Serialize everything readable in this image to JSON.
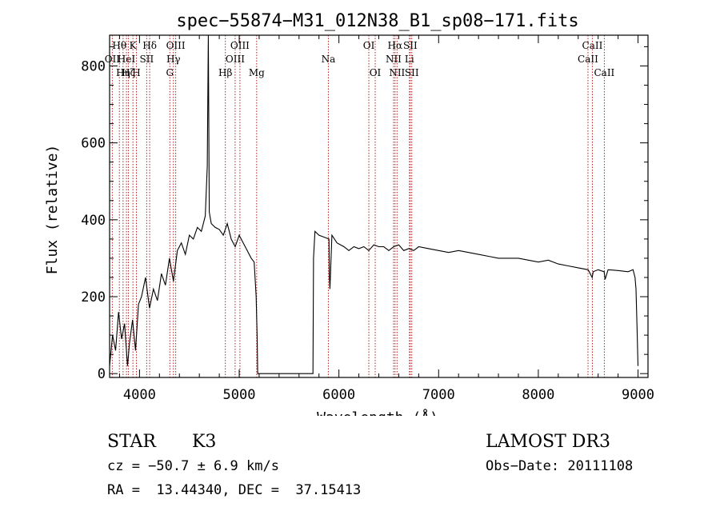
{
  "chart_data": {
    "type": "line",
    "title": "spec−55874−M31_012N38_B1_sp08−171.fits",
    "xlabel": "Wavelength (Å)",
    "ylabel": "Flux (relative)",
    "xlim": [
      3700,
      9100
    ],
    "ylim": [
      -10,
      880
    ],
    "x_ticks": [
      {
        "value": 4000,
        "label": "4000"
      },
      {
        "value": 5000,
        "label": "5000"
      },
      {
        "value": 6000,
        "label": "6000"
      },
      {
        "value": 7000,
        "label": "7000"
      },
      {
        "value": 8000,
        "label": "8000"
      },
      {
        "value": 9000,
        "label": "9000"
      }
    ],
    "y_ticks": [
      {
        "value": 0,
        "label": "0"
      },
      {
        "value": 200,
        "label": "200"
      },
      {
        "value": 400,
        "label": "400"
      },
      {
        "value": 600,
        "label": "600"
      },
      {
        "value": 800,
        "label": "800"
      }
    ],
    "series": [
      {
        "name": "flux",
        "x": [
          3700,
          3730,
          3760,
          3790,
          3820,
          3850,
          3880,
          3900,
          3930,
          3960,
          3990,
          4020,
          4060,
          4100,
          4140,
          4180,
          4220,
          4260,
          4300,
          4340,
          4380,
          4420,
          4460,
          4500,
          4540,
          4580,
          4620,
          4660,
          4680,
          4690,
          4700,
          4720,
          4760,
          4800,
          4840,
          4880,
          4920,
          4960,
          5000,
          5040,
          5080,
          5120,
          5150,
          5170,
          5180,
          5185,
          5300,
          5500,
          5740,
          5745,
          5760,
          5800,
          5850,
          5900,
          5905,
          5910,
          5930,
          5980,
          6050,
          6100,
          6150,
          6200,
          6250,
          6300,
          6350,
          6400,
          6450,
          6500,
          6550,
          6600,
          6650,
          6700,
          6750,
          6800,
          6900,
          7000,
          7100,
          7200,
          7300,
          7400,
          7500,
          7600,
          7700,
          7800,
          7900,
          8000,
          8100,
          8200,
          8300,
          8400,
          8500,
          8540,
          8550,
          8600,
          8660,
          8670,
          8700,
          8800,
          8900,
          8950,
          8970,
          8980,
          8990,
          9000
        ],
        "values": [
          20,
          100,
          60,
          160,
          90,
          130,
          20,
          80,
          140,
          60,
          180,
          200,
          250,
          170,
          220,
          190,
          260,
          230,
          300,
          240,
          320,
          340,
          310,
          360,
          350,
          380,
          370,
          410,
          540,
          880,
          420,
          390,
          380,
          375,
          360,
          390,
          350,
          330,
          360,
          340,
          320,
          300,
          290,
          200,
          90,
          0,
          0,
          0,
          0,
          300,
          370,
          360,
          355,
          350,
          250,
          220,
          360,
          340,
          330,
          320,
          330,
          325,
          330,
          320,
          335,
          330,
          330,
          320,
          330,
          335,
          320,
          325,
          320,
          330,
          325,
          320,
          315,
          320,
          315,
          310,
          305,
          300,
          300,
          300,
          295,
          290,
          295,
          285,
          280,
          275,
          270,
          250,
          265,
          270,
          265,
          245,
          270,
          268,
          265,
          270,
          250,
          220,
          120,
          20
        ]
      }
    ],
    "line_markers": [
      {
        "wavelength": 3727,
        "label": "OII",
        "row": 2
      },
      {
        "wavelength": 3798,
        "label": "Hθ",
        "row": 1
      },
      {
        "wavelength": 3835,
        "label": "Hη",
        "row": 3
      },
      {
        "wavelength": 3869,
        "label": "HeI",
        "row": 2
      },
      {
        "wavelength": 3889,
        "label": "Hζ",
        "row": 3
      },
      {
        "wavelength": 3934,
        "label": "K",
        "row": 1
      },
      {
        "wavelength": 3969,
        "label": "H",
        "row": 3
      },
      {
        "wavelength": 4072,
        "label": "SII",
        "row": 2
      },
      {
        "wavelength": 4102,
        "label": "Hδ",
        "row": 1
      },
      {
        "wavelength": 4304,
        "label": "G",
        "row": 3
      },
      {
        "wavelength": 4340,
        "label": "Hγ",
        "row": 2
      },
      {
        "wavelength": 4363,
        "label": "OIII",
        "row": 1
      },
      {
        "wavelength": 4861,
        "label": "Hβ",
        "row": 3
      },
      {
        "wavelength": 4959,
        "label": "OIII",
        "row": 2
      },
      {
        "wavelength": 5007,
        "label": "OIII",
        "row": 1
      },
      {
        "wavelength": 5175,
        "label": "Mg",
        "row": 3
      },
      {
        "wavelength": 5894,
        "label": "Na",
        "row": 2
      },
      {
        "wavelength": 6300,
        "label": "OI",
        "row": 1
      },
      {
        "wavelength": 6364,
        "label": "OI",
        "row": 3
      },
      {
        "wavelength": 6548,
        "label": "NII",
        "row": 2
      },
      {
        "wavelength": 6563,
        "label": "Hα",
        "row": 1
      },
      {
        "wavelength": 6583,
        "label": "NII",
        "row": 3
      },
      {
        "wavelength": 6707,
        "label": "Li",
        "row": 2
      },
      {
        "wavelength": 6716,
        "label": "SII",
        "row": 1
      },
      {
        "wavelength": 6731,
        "label": "SII",
        "row": 3
      },
      {
        "wavelength": 8498,
        "label": "CaII",
        "row": 2
      },
      {
        "wavelength": 8542,
        "label": "CaII",
        "row": 1
      },
      {
        "wavelength": 8662,
        "label": "CaII",
        "row": 3
      }
    ],
    "colors": {
      "spectrum": "#000000",
      "marker": "#b22222",
      "axes": "#000000"
    }
  },
  "info": {
    "class": "STAR",
    "subclass": "K3",
    "survey": "LAMOST DR3",
    "redshift": "cz = −50.7 ± 6.9 km/s",
    "obs_date": "Obs−Date: 20111108",
    "coords": "RA =  13.44340, DEC =  37.15413"
  }
}
